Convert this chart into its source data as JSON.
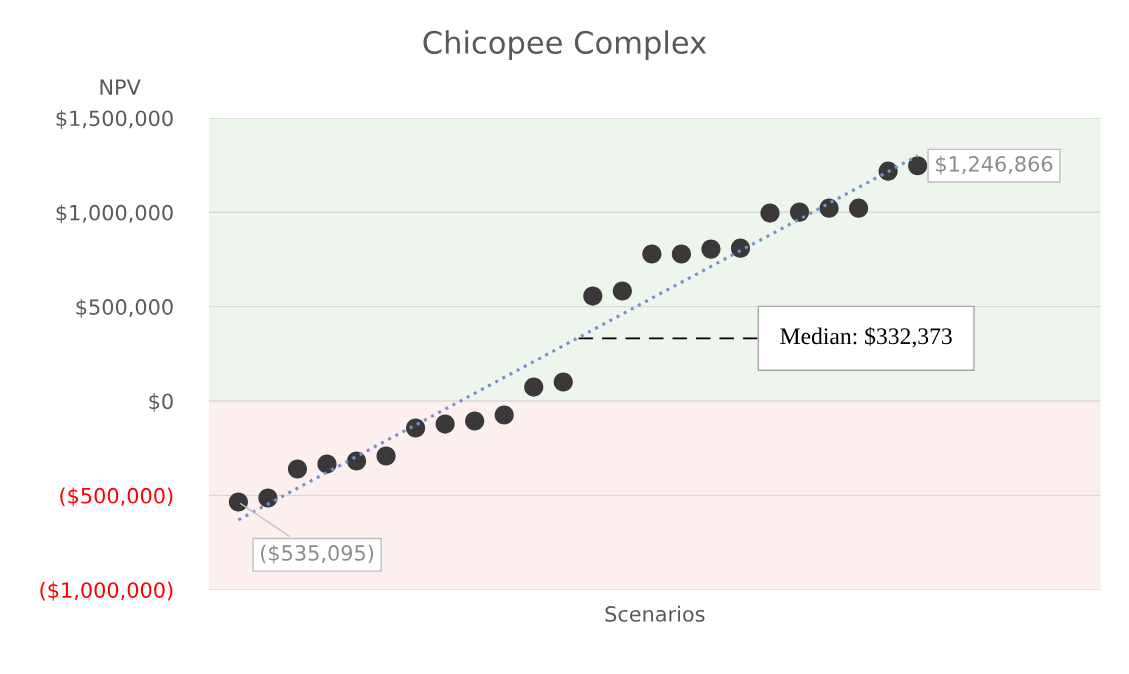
{
  "chart_data": {
    "type": "scatter",
    "title": "Chicopee Complex",
    "xlabel": "Scenarios",
    "ylabel": "NPV",
    "categories": [
      null,
      null,
      null,
      null,
      null,
      null,
      null,
      null,
      null,
      null,
      null,
      null,
      null,
      null,
      null,
      null,
      null,
      null,
      null,
      null,
      null,
      null,
      null,
      null
    ],
    "series": [
      {
        "color": "#3a3838",
        "values": [
          -535095,
          -514000,
          -360000,
          -334000,
          -318000,
          -291000,
          -143000,
          -122000,
          -106000,
          -74000,
          74000,
          101000,
          556000,
          583000,
          779000,
          779000,
          805000,
          810000,
          996000,
          1001000,
          1022000,
          1022000,
          1218000,
          1246866
        ],
        "value_labels": [
          "($535,095)",
          null,
          null,
          null,
          null,
          null,
          null,
          null,
          null,
          null,
          null,
          null,
          null,
          null,
          null,
          null,
          null,
          null,
          null,
          null,
          null,
          null,
          null,
          "$1,246,866"
        ]
      },
      {
        "type": "line",
        "color": "#7391cf",
        "line_style": "dotted",
        "marker": "none",
        "values": [
          -630000,
          -546000,
          -462000,
          -378000,
          -294000,
          -210000,
          -127000,
          -43000,
          41000,
          125000,
          209000,
          293000,
          377000,
          461000,
          545000,
          629000,
          713000,
          797000,
          880000,
          964000,
          1048000,
          1132000,
          1216000,
          1300000
        ]
      }
    ],
    "marker": "circle",
    "ylim": [
      -1000000,
      1500000
    ],
    "yticks": [
      {
        "value": -1000000,
        "label": "($1,000,000)"
      },
      {
        "value": -500000,
        "label": "($500,000)"
      },
      {
        "value": 0,
        "label": "$0"
      },
      {
        "value": 500000,
        "label": "$500,000"
      },
      {
        "value": 1000000,
        "label": "$1,000,000"
      },
      {
        "value": 1500000,
        "label": "$1,500,000"
      }
    ],
    "grid": "y",
    "legend": false,
    "bands": [
      {
        "axis": "y",
        "from": 0,
        "to": 1500000,
        "color": "#eef5ec"
      },
      {
        "axis": "y",
        "from": -1000000,
        "to": 0,
        "color": "#fcefee"
      }
    ],
    "ref_lines": [
      {
        "axis": "y",
        "value": 332373,
        "label": "Median: $332,373",
        "color": "#000000",
        "line_style": "dashed"
      }
    ]
  }
}
